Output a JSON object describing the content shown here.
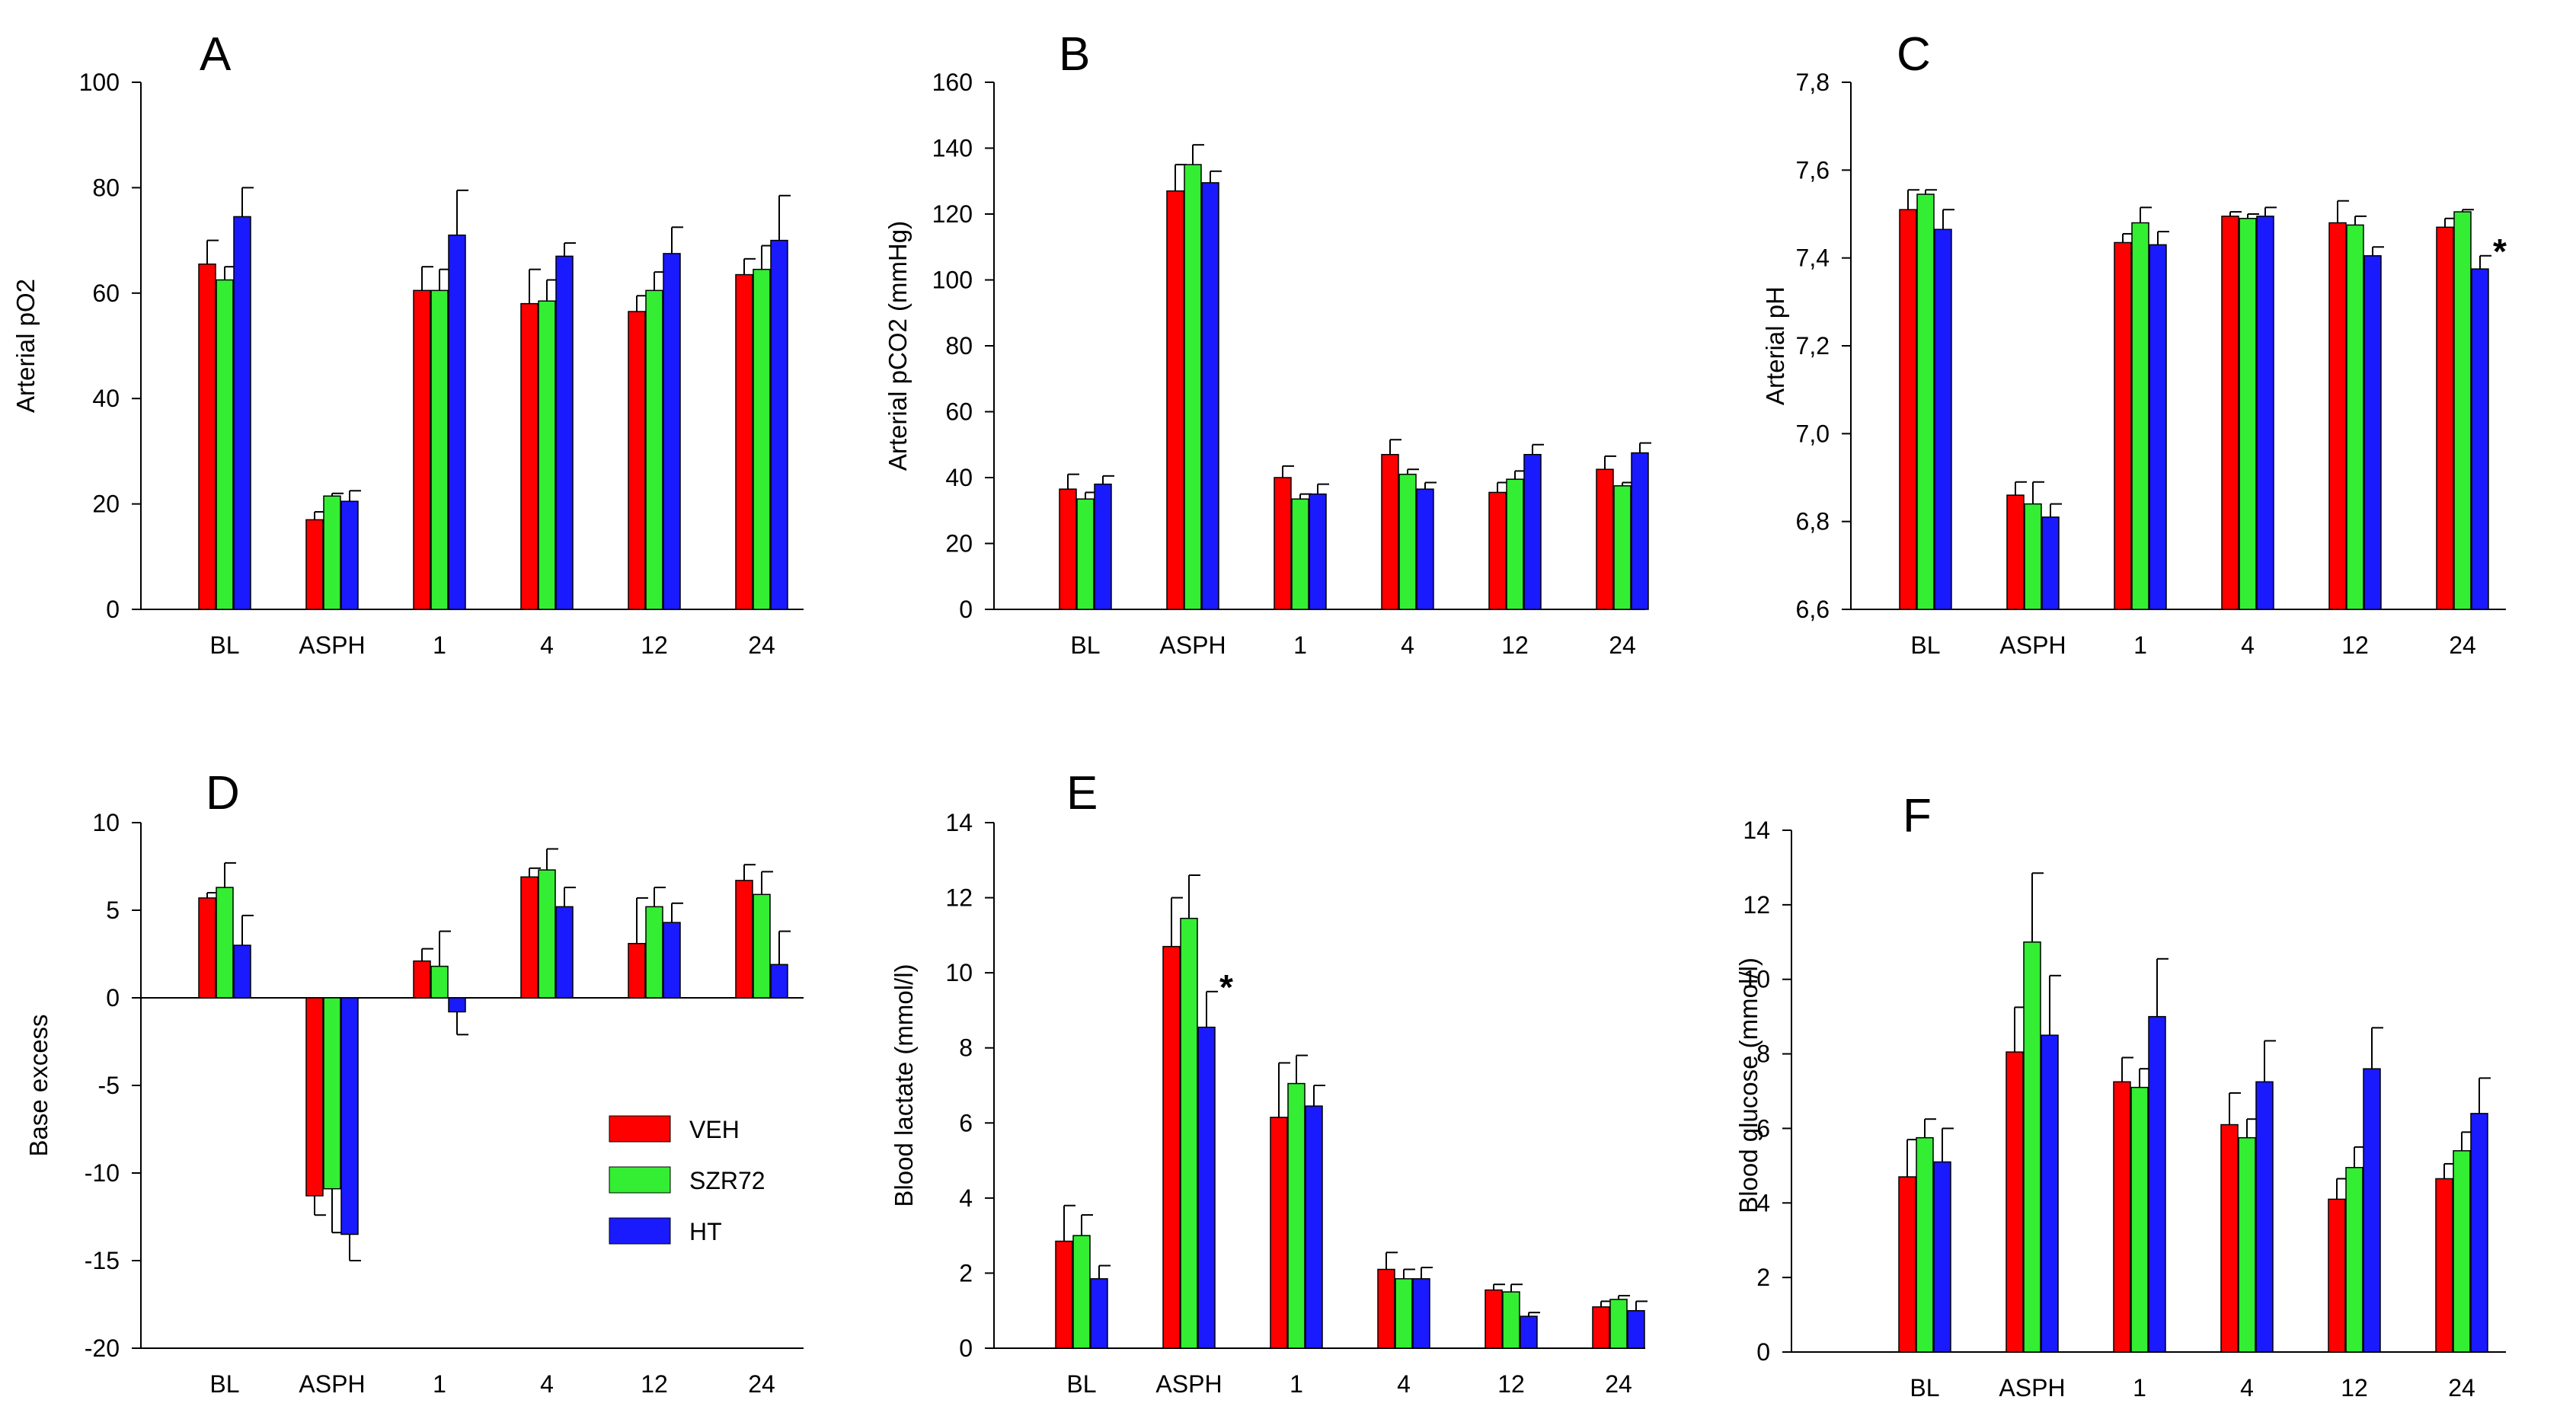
{
  "legend": [
    {
      "name": "VEH",
      "color": "#ff0000"
    },
    {
      "name": "SZR72",
      "color": "#33ee33"
    },
    {
      "name": "HT",
      "color": "#1a1aff"
    }
  ],
  "chart_data": [
    {
      "type": "bar",
      "panel": "A",
      "categories": [
        "BL",
        "ASPH",
        "1",
        "4",
        "12",
        "24"
      ],
      "ylabel": "Arterial pO2",
      "xlabel": "",
      "ylim": [
        0,
        100
      ],
      "yticks": [
        "0",
        "20",
        "40",
        "60",
        "80",
        "100"
      ],
      "yticks_values": [
        0,
        20,
        40,
        60,
        80,
        100
      ],
      "series": [
        {
          "name": "VEH",
          "values": [
            65.5,
            17,
            60.5,
            58,
            56.5,
            63.5
          ],
          "errors": [
            4.5,
            1.5,
            4.5,
            6.5,
            3,
            3
          ]
        },
        {
          "name": "SZR72",
          "values": [
            62.5,
            21.5,
            60.5,
            58.5,
            60.5,
            64.5
          ],
          "errors": [
            2.5,
            0.5,
            4,
            4,
            3.5,
            4.5
          ]
        },
        {
          "name": "HT",
          "values": [
            74.5,
            20.5,
            71,
            67,
            67.5,
            70
          ],
          "errors": [
            5.5,
            2,
            8.5,
            2.5,
            5,
            8.5
          ]
        }
      ],
      "annotations": []
    },
    {
      "type": "bar",
      "panel": "B",
      "categories": [
        "BL",
        "ASPH",
        "1",
        "4",
        "12",
        "24"
      ],
      "ylabel": "Arterial pCO2 (mmHg)",
      "xlabel": "",
      "ylim": [
        0,
        160
      ],
      "yticks": [
        "0",
        "20",
        "40",
        "60",
        "80",
        "100",
        "120",
        "140",
        "160"
      ],
      "yticks_values": [
        0,
        20,
        40,
        60,
        80,
        100,
        120,
        140,
        160
      ],
      "series": [
        {
          "name": "VEH",
          "values": [
            36.5,
            127,
            40,
            47,
            35.5,
            42.5
          ],
          "errors": [
            4.5,
            8,
            3.5,
            4.5,
            3,
            4
          ]
        },
        {
          "name": "SZR72",
          "values": [
            33.5,
            135,
            33.5,
            41,
            39.5,
            37.5
          ],
          "errors": [
            2,
            6,
            1.5,
            1.5,
            2.5,
            1
          ]
        },
        {
          "name": "HT",
          "values": [
            38,
            129.5,
            35,
            36.5,
            47,
            47.5
          ],
          "errors": [
            2.5,
            3.5,
            3,
            2,
            3,
            3
          ]
        }
      ],
      "annotations": []
    },
    {
      "type": "bar",
      "panel": "C",
      "categories": [
        "BL",
        "ASPH",
        "1",
        "4",
        "12",
        "24"
      ],
      "ylabel": "Arterial pH",
      "xlabel": "",
      "ylim": [
        6.6,
        7.8
      ],
      "yticks": [
        "6,6",
        "6,8",
        "7,0",
        "7,2",
        "7,4",
        "7,6",
        "7,8"
      ],
      "yticks_values": [
        6.6,
        6.8,
        7.0,
        7.2,
        7.4,
        7.6,
        7.8
      ],
      "series": [
        {
          "name": "VEH",
          "values": [
            7.51,
            6.86,
            7.435,
            7.495,
            7.48,
            7.47
          ],
          "errors": [
            0.045,
            0.03,
            0.02,
            0.01,
            0.05,
            0.02
          ]
        },
        {
          "name": "SZR72",
          "values": [
            7.545,
            6.84,
            7.48,
            7.49,
            7.475,
            7.505
          ],
          "errors": [
            0.01,
            0.05,
            0.035,
            0.01,
            0.02,
            0.005
          ]
        },
        {
          "name": "HT",
          "values": [
            7.465,
            6.81,
            7.43,
            7.495,
            7.405,
            7.375
          ],
          "errors": [
            0.045,
            0.03,
            0.03,
            0.02,
            0.02,
            0.03
          ]
        }
      ],
      "annotations": [
        {
          "text": "*",
          "category": "24",
          "series": "HT"
        }
      ]
    },
    {
      "type": "bar",
      "panel": "D",
      "categories": [
        "BL",
        "ASPH",
        "1",
        "4",
        "12",
        "24"
      ],
      "ylabel": "Base excess",
      "xlabel": "",
      "ylim": [
        -20,
        10
      ],
      "yticks": [
        "-20",
        "-15",
        "-10",
        "-5",
        "0",
        "5",
        "10"
      ],
      "yticks_values": [
        -20,
        -15,
        -10,
        -5,
        0,
        5,
        10
      ],
      "series": [
        {
          "name": "VEH",
          "values": [
            5.7,
            -11.3,
            2.1,
            6.9,
            3.1,
            6.7
          ],
          "errors": [
            0.3,
            1.1,
            0.7,
            0.5,
            2.6,
            0.9
          ]
        },
        {
          "name": "SZR72",
          "values": [
            6.3,
            -10.9,
            1.8,
            7.3,
            5.2,
            5.9
          ],
          "errors": [
            1.4,
            2.5,
            2,
            1.2,
            1.1,
            1.3
          ]
        },
        {
          "name": "HT",
          "values": [
            3,
            -13.5,
            -0.8,
            5.2,
            4.3,
            1.9
          ],
          "errors": [
            1.7,
            1.5,
            1.3,
            1.1,
            1.1,
            1.9
          ]
        }
      ],
      "annotations": []
    },
    {
      "type": "bar",
      "panel": "E",
      "categories": [
        "BL",
        "ASPH",
        "1",
        "4",
        "12",
        "24"
      ],
      "ylabel": "Blood lactate (mmol/l)",
      "xlabel": "",
      "ylim": [
        0,
        14
      ],
      "yticks": [
        "0",
        "2",
        "4",
        "6",
        "8",
        "10",
        "12",
        "14"
      ],
      "yticks_values": [
        0,
        2,
        4,
        6,
        8,
        10,
        12,
        14
      ],
      "series": [
        {
          "name": "VEH",
          "values": [
            2.85,
            10.7,
            6.15,
            2.1,
            1.55,
            1.1
          ],
          "errors": [
            0.95,
            1.3,
            1.45,
            0.45,
            0.15,
            0.15
          ]
        },
        {
          "name": "SZR72",
          "values": [
            3,
            11.45,
            7.05,
            1.85,
            1.5,
            1.3
          ],
          "errors": [
            0.55,
            1.15,
            0.75,
            0.25,
            0.2,
            0.1
          ]
        },
        {
          "name": "HT",
          "values": [
            1.85,
            8.55,
            6.45,
            1.85,
            0.85,
            1
          ],
          "errors": [
            0.35,
            0.95,
            0.55,
            0.3,
            0.1,
            0.25
          ]
        }
      ],
      "annotations": [
        {
          "text": "*",
          "category": "ASPH",
          "series": "HT"
        }
      ]
    },
    {
      "type": "bar",
      "panel": "F",
      "categories": [
        "BL",
        "ASPH",
        "1",
        "4",
        "12",
        "24"
      ],
      "ylabel": "Blood glucose (mmol/l)",
      "xlabel": "",
      "ylim": [
        0,
        14
      ],
      "yticks": [
        "0",
        "2",
        "4",
        "6",
        "8",
        "10",
        "12",
        "14"
      ],
      "yticks_values": [
        0,
        2,
        4,
        6,
        8,
        10,
        12,
        14
      ],
      "series": [
        {
          "name": "VEH",
          "values": [
            4.7,
            8.05,
            7.25,
            6.1,
            4.1,
            4.65
          ],
          "errors": [
            1,
            1.2,
            0.65,
            0.85,
            0.55,
            0.4
          ]
        },
        {
          "name": "SZR72",
          "values": [
            5.75,
            11,
            7.1,
            5.75,
            4.95,
            5.4
          ],
          "errors": [
            0.5,
            1.85,
            0.5,
            0.5,
            0.55,
            0.5
          ]
        },
        {
          "name": "HT",
          "values": [
            5.1,
            8.5,
            9,
            7.25,
            7.6,
            6.4
          ],
          "errors": [
            0.9,
            1.6,
            1.55,
            1.1,
            1.1,
            0.95
          ]
        }
      ],
      "annotations": []
    }
  ]
}
